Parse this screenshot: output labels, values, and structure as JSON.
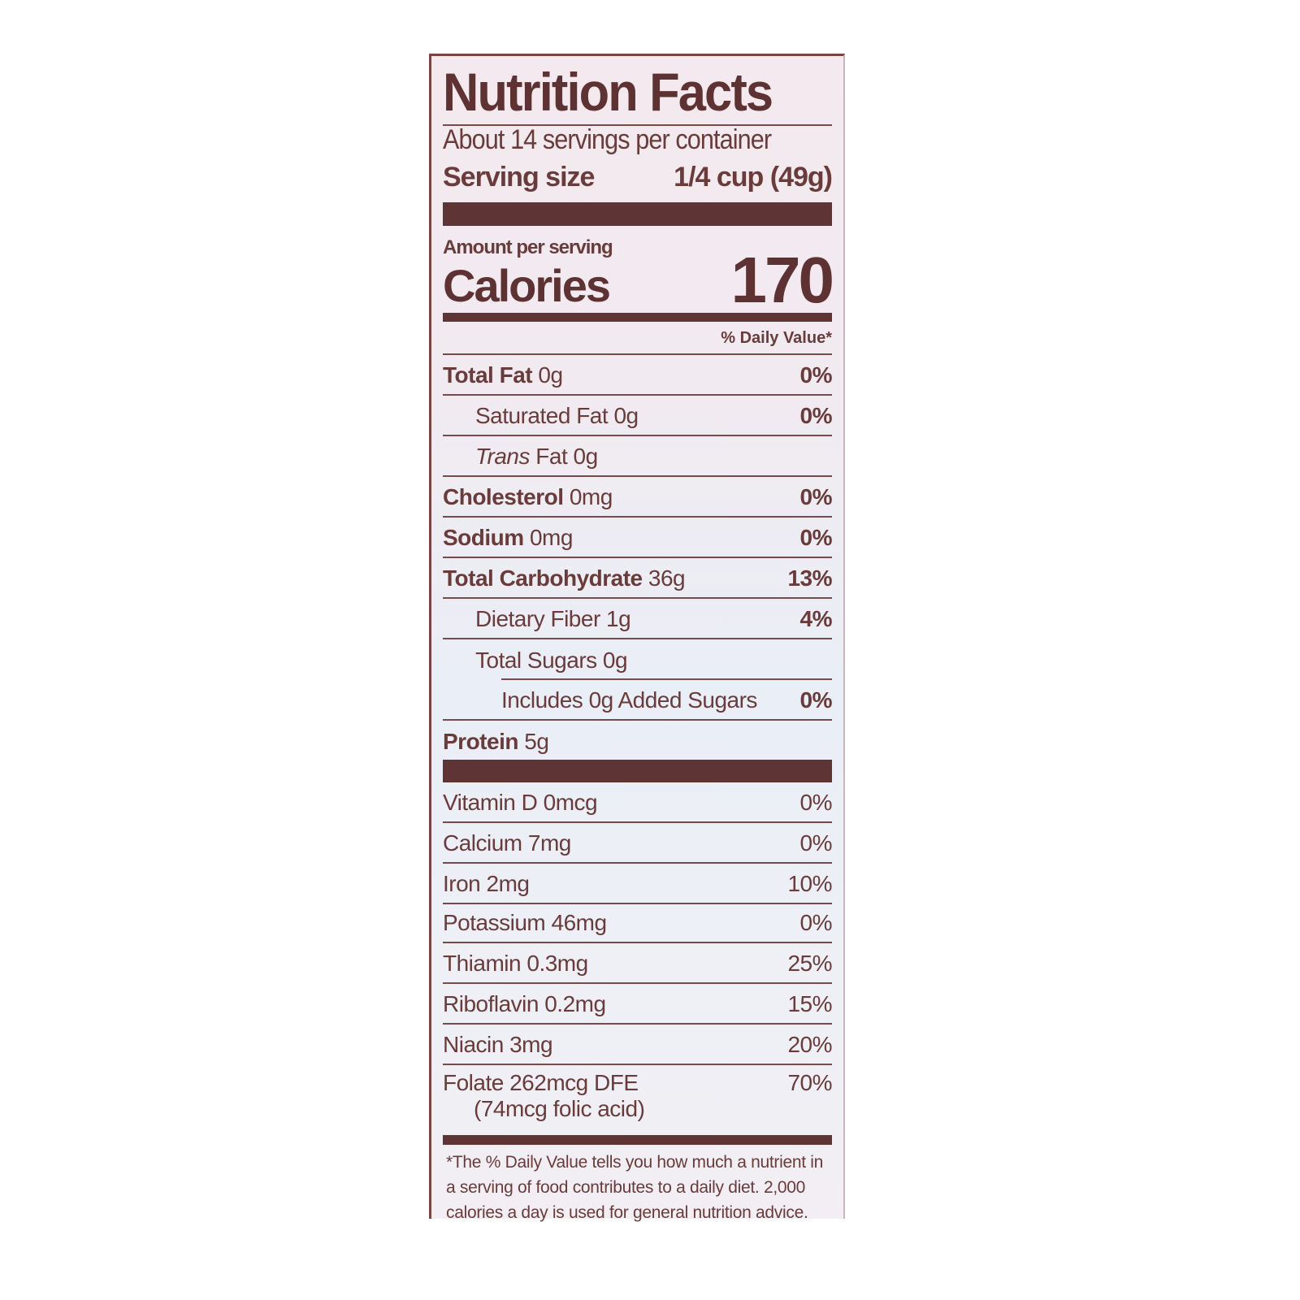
{
  "title": "Nutrition Facts",
  "servings_per_container": "About 14 servings per container",
  "serving_size": {
    "label": "Serving size",
    "value": "1/4 cup (49g)"
  },
  "amount_per_serving": "Amount per serving",
  "calories": {
    "label": "Calories",
    "value": "170"
  },
  "dv_header": "% Daily Value*",
  "nutrients": [
    {
      "name": "Total Fat",
      "amount": "0g",
      "dv": "0%"
    },
    {
      "name": "Saturated Fat",
      "amount": "0g",
      "dv": "0%"
    },
    {
      "name": "Trans",
      "name2": "Fat",
      "amount": "0g",
      "dv": ""
    },
    {
      "name": "Cholesterol",
      "amount": "0mg",
      "dv": "0%"
    },
    {
      "name": "Sodium",
      "amount": "0mg",
      "dv": "0%"
    },
    {
      "name": "Total Carbohydrate",
      "amount": "36g",
      "dv": "13%"
    },
    {
      "name": "Dietary Fiber",
      "amount": "1g",
      "dv": "4%"
    },
    {
      "name": "Total Sugars",
      "amount": "0g",
      "dv": ""
    },
    {
      "text": "Includes 0g Added Sugars",
      "dv": "0%"
    },
    {
      "name": "Protein",
      "amount": "5g"
    }
  ],
  "vitamins": [
    {
      "text": "Vitamin D 0mcg",
      "dv": "0%"
    },
    {
      "text": "Calcium 7mg",
      "dv": "0%"
    },
    {
      "text": "Iron 2mg",
      "dv": "10%"
    },
    {
      "text": "Potassium 46mg",
      "dv": "0%"
    },
    {
      "text": "Thiamin 0.3mg",
      "dv": "25%"
    },
    {
      "text": "Riboflavin 0.2mg",
      "dv": "15%"
    },
    {
      "text": "Niacin 3mg",
      "dv": "20%"
    },
    {
      "text": "Folate 262mcg DFE",
      "sub": "(74mcg folic acid)",
      "dv": "70%"
    }
  ],
  "footnote": "*The % Daily Value tells you how much a nutrient in a serving of food contributes to a daily diet. 2,000 calories a day is used for general nutrition advice."
}
